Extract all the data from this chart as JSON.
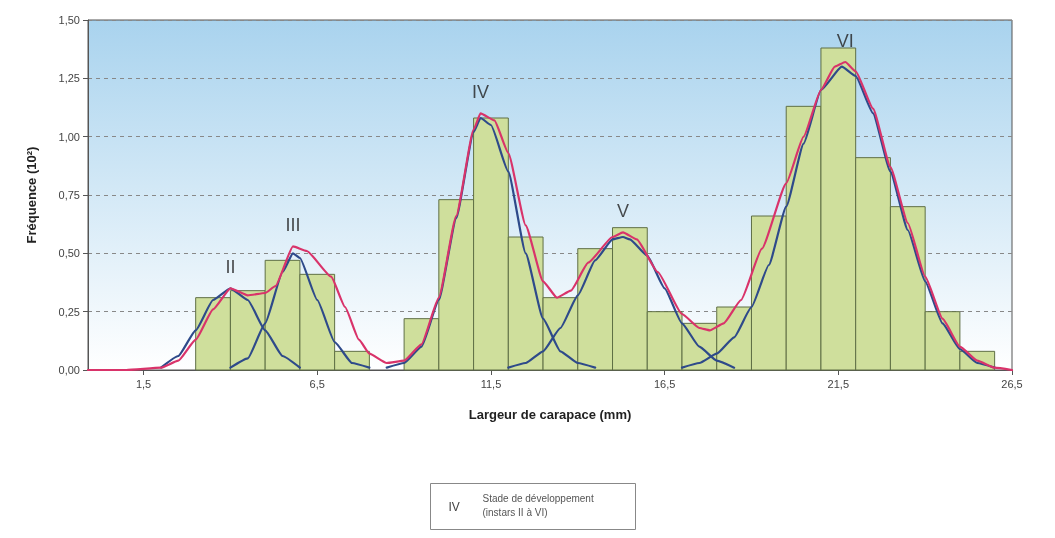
{
  "chart_data": {
    "type": "histogram",
    "xlabel": "Largeur de carapace (mm)",
    "ylabel": "Fréquence (10²)",
    "bins": [
      3,
      4,
      5,
      6,
      7,
      8,
      9,
      10,
      11,
      12,
      13,
      14,
      15,
      16,
      17,
      18,
      19,
      20,
      21,
      22,
      23,
      24,
      25,
      26
    ],
    "values": [
      0.31,
      0.34,
      0.47,
      0.41,
      0.08,
      null,
      0.22,
      0.73,
      1.08,
      0.57,
      0.31,
      0.52,
      0.61,
      0.25,
      0.2,
      0.27,
      0.66,
      1.13,
      1.38,
      0.91,
      0.7,
      0.25,
      0.08
    ],
    "color": "#cfdf9c",
    "series": [
      {
        "type": "line",
        "color": "#d9336a",
        "x": [
          -0.1,
          1,
          2,
          2.5,
          3,
          3.5,
          4,
          4.5,
          5,
          5.3,
          5.8,
          6.2,
          6.9,
          7.3,
          7.7,
          8,
          8.5,
          9,
          9.5,
          10,
          10.5,
          11,
          11.2,
          11.6,
          12,
          12.5,
          13,
          13.4,
          13.8,
          14.3,
          15,
          15.3,
          15.7,
          16.3,
          17,
          17.5,
          17.8,
          18.2,
          18.7,
          19.3,
          20,
          20.5,
          21,
          21.4,
          21.7,
          22,
          22.5,
          23,
          23.5,
          24,
          24.5,
          25,
          25.5,
          26,
          26.5
        ],
        "values": [
          0,
          0,
          0.01,
          0.04,
          0.13,
          0.26,
          0.35,
          0.32,
          0.33,
          0.36,
          0.53,
          0.51,
          0.4,
          0.27,
          0.13,
          0.07,
          0.03,
          0.04,
          0.11,
          0.31,
          0.66,
          1.03,
          1.1,
          1.07,
          0.93,
          0.62,
          0.38,
          0.31,
          0.34,
          0.46,
          0.57,
          0.59,
          0.56,
          0.42,
          0.24,
          0.18,
          0.17,
          0.2,
          0.3,
          0.52,
          0.8,
          1.0,
          1.2,
          1.3,
          1.32,
          1.28,
          1.12,
          0.87,
          0.63,
          0.4,
          0.22,
          0.1,
          0.04,
          0.01,
          0
        ]
      },
      {
        "type": "line",
        "color": "#2e4a8a",
        "x": [
          2,
          2.5,
          3,
          3.5,
          4,
          4.5,
          5,
          5.5,
          6
        ],
        "values": [
          0.01,
          0.06,
          0.17,
          0.3,
          0.35,
          0.3,
          0.17,
          0.06,
          0.01
        ]
      },
      {
        "type": "line",
        "color": "#2e4a8a",
        "x": [
          4,
          4.5,
          5,
          5.5,
          5.8,
          6,
          6.5,
          7,
          7.5,
          8
        ],
        "values": [
          0.01,
          0.05,
          0.2,
          0.42,
          0.5,
          0.48,
          0.3,
          0.12,
          0.03,
          0.01
        ]
      },
      {
        "type": "line",
        "color": "#2e4a8a",
        "x": [
          8.5,
          9,
          9.5,
          10,
          10.5,
          11,
          11.2,
          11.5,
          12,
          12.5,
          13,
          13.5,
          14,
          14.5
        ],
        "values": [
          0.01,
          0.03,
          0.1,
          0.3,
          0.65,
          1.02,
          1.08,
          1.05,
          0.85,
          0.5,
          0.22,
          0.08,
          0.03,
          0.01
        ]
      },
      {
        "type": "line",
        "color": "#2e4a8a",
        "x": [
          12,
          12.5,
          13,
          13.5,
          14,
          14.5,
          15,
          15.3,
          15.5,
          16,
          16.5,
          17,
          17.5,
          18,
          18.5
        ],
        "values": [
          0.01,
          0.03,
          0.08,
          0.18,
          0.32,
          0.47,
          0.56,
          0.57,
          0.56,
          0.49,
          0.35,
          0.2,
          0.1,
          0.04,
          0.01
        ]
      },
      {
        "type": "line",
        "color": "#2e4a8a",
        "x": [
          17,
          17.5,
          18,
          18.5,
          19,
          19.5,
          20,
          20.5,
          21,
          21.6,
          22,
          22.5,
          23,
          23.5,
          24,
          24.5,
          25,
          25.5,
          26
        ],
        "values": [
          0.01,
          0.03,
          0.07,
          0.14,
          0.27,
          0.45,
          0.7,
          0.97,
          1.2,
          1.3,
          1.26,
          1.1,
          0.85,
          0.6,
          0.38,
          0.2,
          0.09,
          0.03,
          0.01
        ]
      }
    ],
    "xlim": [
      -0.1,
      26.5
    ],
    "xticks": [
      {
        "value": 1.5,
        "label": "1,5"
      },
      {
        "value": 6.5,
        "label": "6,5"
      },
      {
        "value": 11.5,
        "label": "11,5"
      },
      {
        "value": 16.5,
        "label": "16,5"
      },
      {
        "value": 21.5,
        "label": "21,5"
      },
      {
        "value": 26.5,
        "label": "26,5"
      }
    ],
    "ylim": [
      0,
      1.5
    ],
    "yticks": [
      {
        "value": 0,
        "label": "0,00"
      },
      {
        "value": 0.25,
        "label": "0,25"
      },
      {
        "value": 0.5,
        "label": "0,50"
      },
      {
        "value": 0.75,
        "label": "0,75"
      },
      {
        "value": 1,
        "label": "1,00"
      },
      {
        "value": 1.25,
        "label": "1,25"
      },
      {
        "value": 1.5,
        "label": "1,50"
      }
    ],
    "grid": "y",
    "marker": "none",
    "line_style": "solid",
    "annotations": [
      {
        "text": "II",
        "x": 4,
        "y": 0.35
      },
      {
        "text": "III",
        "x": 5.8,
        "y": 0.53
      },
      {
        "text": "IV",
        "x": 11.2,
        "y": 1.1
      },
      {
        "text": "V",
        "x": 15.3,
        "y": 0.59
      },
      {
        "text": "VI",
        "x": 21.7,
        "y": 1.32
      },
      "IV",
      "Stade de développement (instars II à VI)"
    ]
  }
}
